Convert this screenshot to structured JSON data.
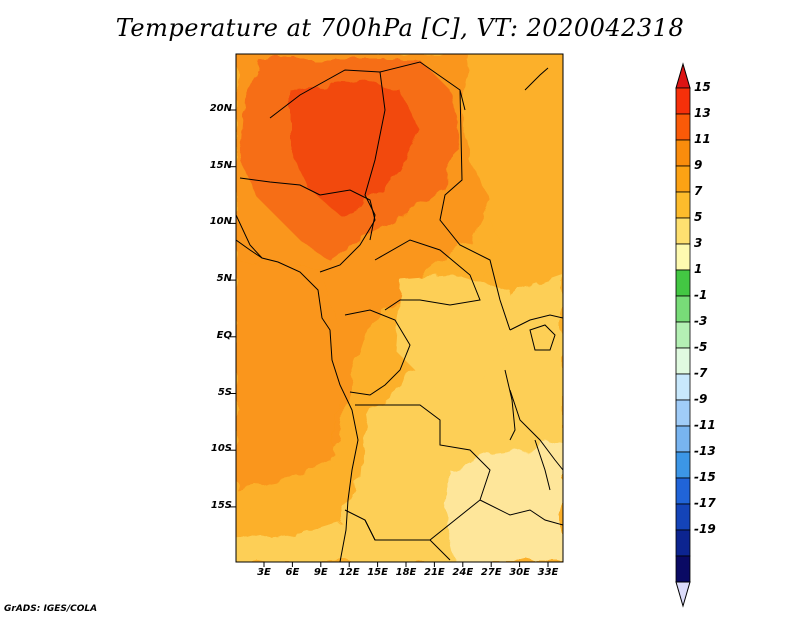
{
  "title": "Temperature at 700hPa [C], VT: 2020042318",
  "credit": "GrADS: IGES/COLA",
  "lat_labels": [
    "20N",
    "15N",
    "10N",
    "5N",
    "EQ",
    "5S",
    "10S",
    "15S"
  ],
  "lon_labels": [
    "3E",
    "6E",
    "9E",
    "12E",
    "15E",
    "18E",
    "21E",
    "24E",
    "27E",
    "30E",
    "33E"
  ],
  "colorbar": {
    "labels": [
      "15",
      "13",
      "11",
      "9",
      "7",
      "5",
      "3",
      "1",
      "-1",
      "-3",
      "-5",
      "-7",
      "-9",
      "-11",
      "-13",
      "-15",
      "-17",
      "-19"
    ],
    "colors": [
      "#f6300a",
      "#fa5a08",
      "#fa8c0c",
      "#fca214",
      "#fdbc2c",
      "#fee070",
      "#fefab0",
      "#43c743",
      "#78dc78",
      "#b4f0b4",
      "#e0fae0",
      "#c8e8fc",
      "#a0ccf8",
      "#78b4f0",
      "#3c96e6",
      "#2064d8",
      "#1444b8",
      "#0c2490",
      "#0a0a64"
    ],
    "over_color": "#dc1414",
    "under_color": "#dcdcfa"
  },
  "map": {
    "variable": "Temperature at 700hPa",
    "units": "C",
    "valid_time": "2020042318",
    "lon_range": [
      0.5,
      35
    ],
    "lat_range": [
      -20,
      24.5
    ],
    "field_colors": {
      "c15": "#f24a0e",
      "c13": "#f66e12",
      "c11": "#fa961a",
      "c9": "#fcb02a",
      "c7": "#fdcf56",
      "c5": "#fee69a"
    }
  }
}
